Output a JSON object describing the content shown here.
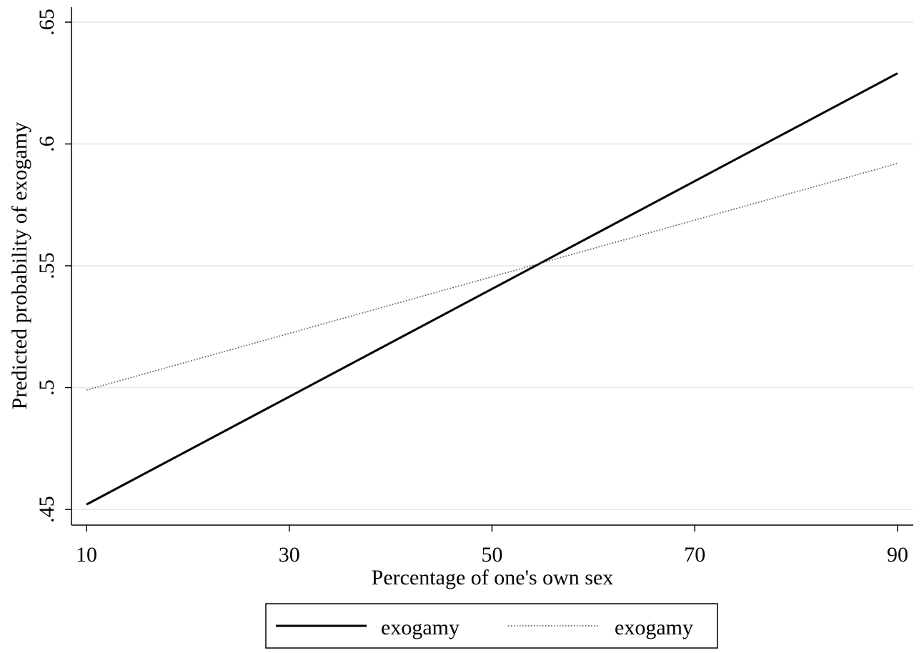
{
  "chart_data": {
    "type": "line",
    "title": "",
    "xlabel": "Percentage of one's own sex",
    "ylabel": "Predicted probability of exogamy",
    "xlim": [
      10,
      90
    ],
    "ylim": [
      0.45,
      0.65
    ],
    "x_ticks": [
      {
        "value": 10,
        "label": "10"
      },
      {
        "value": 30,
        "label": "30"
      },
      {
        "value": 50,
        "label": "50"
      },
      {
        "value": 70,
        "label": "70"
      },
      {
        "value": 90,
        "label": "90"
      }
    ],
    "y_ticks": [
      {
        "value": 0.45,
        "label": ".45"
      },
      {
        "value": 0.5,
        "label": ".5"
      },
      {
        "value": 0.55,
        "label": ".55"
      },
      {
        "value": 0.6,
        "label": ".6"
      },
      {
        "value": 0.65,
        "label": ".65"
      }
    ],
    "grid": "horizontal",
    "legend_position": "bottom",
    "series": [
      {
        "name": "exogamy",
        "style": "solid",
        "color": "#000000",
        "x": [
          10,
          90
        ],
        "y": [
          0.452,
          0.629
        ]
      },
      {
        "name": "exogamy",
        "style": "dotted",
        "color": "#555555",
        "x": [
          10,
          90
        ],
        "y": [
          0.499,
          0.592
        ]
      }
    ],
    "colors": {
      "grid": "#e4ecef",
      "axis": "#000000"
    }
  }
}
